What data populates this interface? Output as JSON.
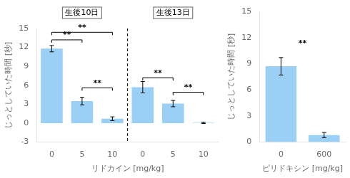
{
  "chart_data": [
    {
      "type": "bar",
      "xlabel": "リドカイン [mg/kg]",
      "ylabel": "じっとしていた時間 [秒]",
      "groups": [
        {
          "label": "生後10日",
          "categories": [
            "0",
            "5",
            "10"
          ],
          "values": [
            11.8,
            3.5,
            0.7
          ],
          "errors": [
            0.5,
            0.6,
            0.3
          ],
          "brackets": [
            {
              "text": "**",
              "between": [
                "0",
                "5"
              ],
              "y": 13.2
            },
            {
              "text": "**",
              "between": [
                "0",
                "10"
              ],
              "y": 14.4
            },
            {
              "text": "**",
              "between": [
                "5",
                "10"
              ],
              "y": 5.6
            }
          ]
        },
        {
          "label": "生後13日",
          "categories": [
            "0",
            "5",
            "10"
          ],
          "values": [
            5.7,
            3.1,
            0.05
          ],
          "errors": [
            0.9,
            0.5,
            0.1
          ],
          "brackets": [
            {
              "text": "**",
              "between": [
                "0",
                "5"
              ],
              "y": 7.2
            },
            {
              "text": "**",
              "between": [
                "5",
                "10"
              ],
              "y": 4.9
            }
          ]
        }
      ],
      "ylim": [
        -3,
        15
      ],
      "yticks": [
        -3,
        0,
        3,
        6,
        9,
        12,
        15
      ],
      "grid": false
    },
    {
      "type": "bar",
      "xlabel": "ピリドキシン [mg/kg]",
      "ylabel": "じっとしていた時間 [秒]",
      "categories": [
        "0",
        "600"
      ],
      "values": [
        8.7,
        0.8
      ],
      "errors": [
        1.0,
        0.3
      ],
      "annotations": [
        {
          "text": "**",
          "between": [
            "0",
            "600"
          ],
          "y": 10.8
        }
      ],
      "ylim": [
        0,
        15
      ],
      "yticks": [
        0,
        3,
        6,
        9,
        12,
        15
      ],
      "grid": false
    }
  ]
}
